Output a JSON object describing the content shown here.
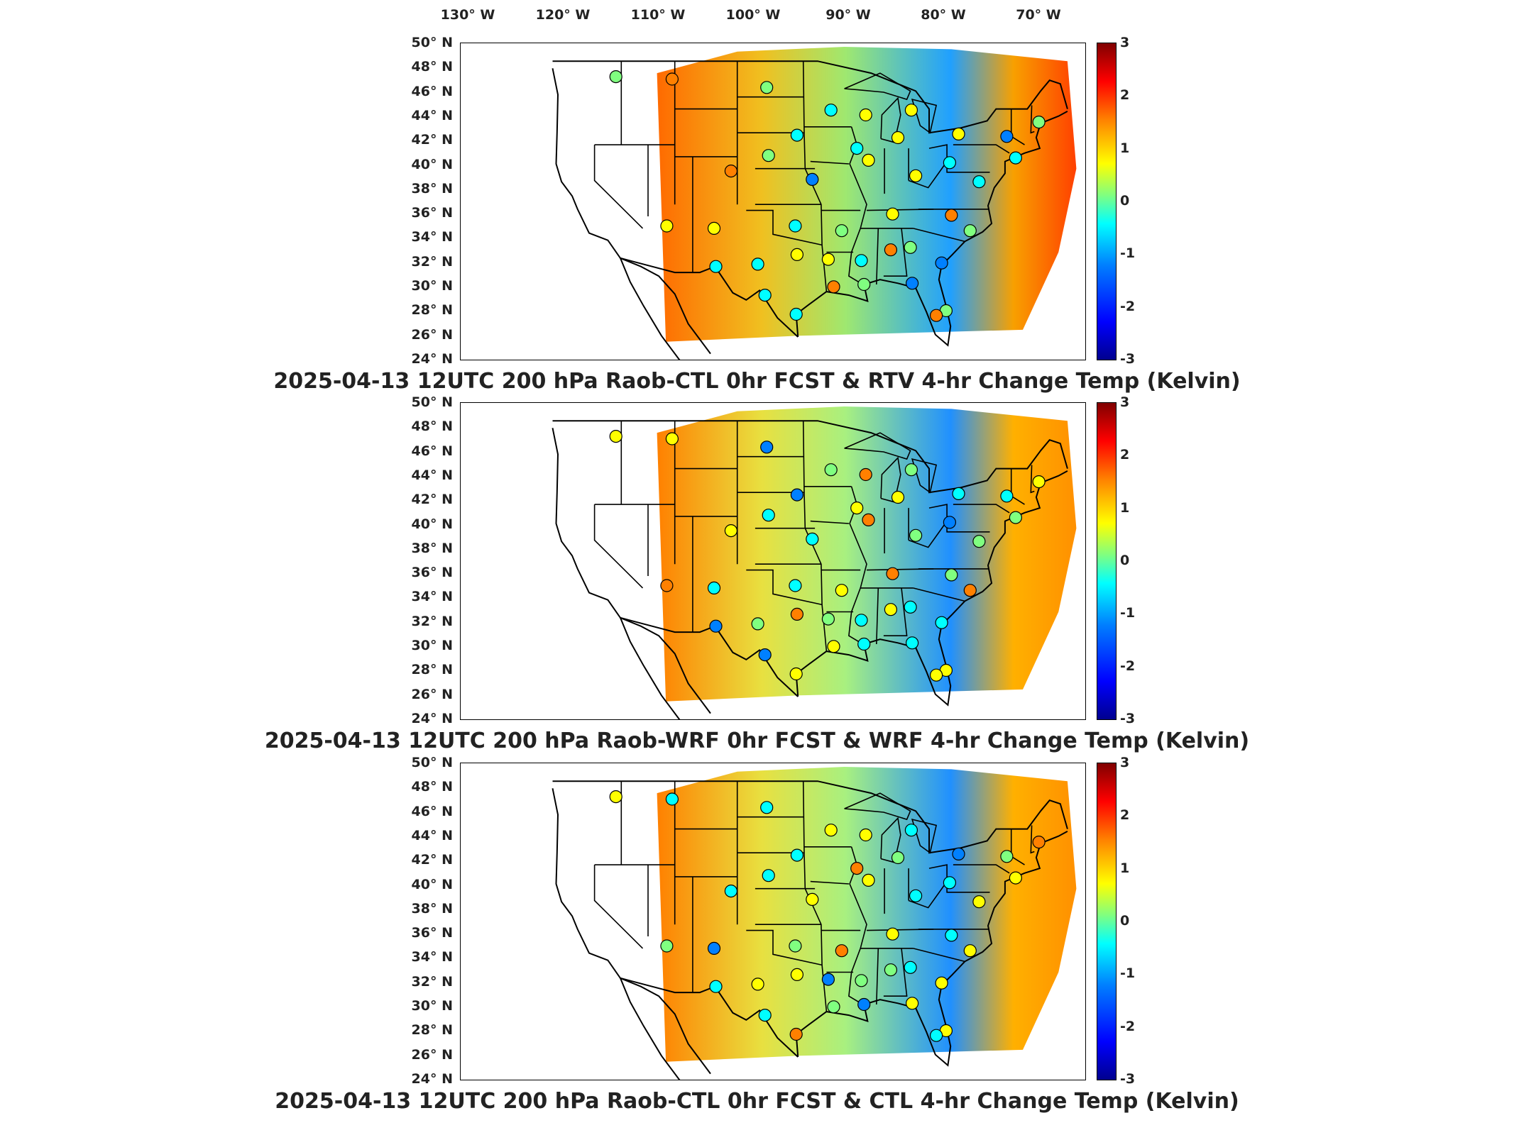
{
  "lon_labels": [
    "130° W",
    "120° W",
    "110° W",
    "100° W",
    "90° W",
    "80° W",
    "70° W"
  ],
  "lat_labels": [
    "50° N",
    "48° N",
    "46° N",
    "44° N",
    "42° N",
    "40° N",
    "38° N",
    "36° N",
    "34° N",
    "32° N",
    "30° N",
    "28° N",
    "26° N",
    "24° N"
  ],
  "colorbar": {
    "ticks": [
      "3",
      "2",
      "1",
      "0",
      "-1",
      "-2",
      "-3"
    ],
    "min": -3,
    "max": 3,
    "colors": [
      "#00008f",
      "#0000ff",
      "#0080ff",
      "#00ffff",
      "#80ff80",
      "#ffff00",
      "#ff8000",
      "#ff0000",
      "#800000"
    ]
  },
  "panels": [
    {
      "title": "2025-04-13 12UTC 200 hPa Raob-CTL 0hr FCST & RTV 4-hr Change Temp (Kelvin)"
    },
    {
      "title": "2025-04-13 12UTC 200 hPa Raob-WRF 0hr FCST & WRF 4-hr Change Temp (Kelvin)"
    },
    {
      "title": "2025-04-13 12UTC 200 hPa Raob-CTL 0hr FCST & CTL 4-hr Change Temp (Kelvin)"
    }
  ]
}
